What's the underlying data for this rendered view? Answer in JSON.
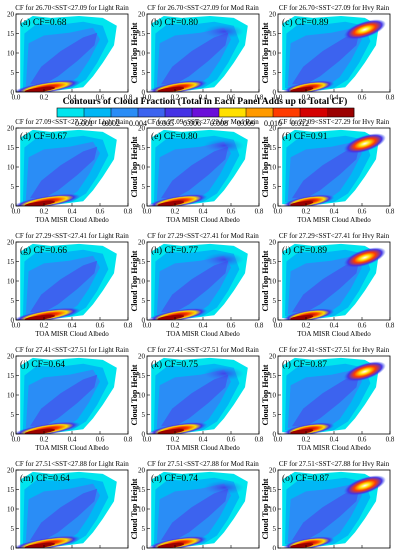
{
  "figure": {
    "colorbar_title": "Contours of Cloud Fraction (Total in Each Panel Adds up to Total CF)",
    "colorbar_ticks": [
      "0.001",
      "0.002",
      "0.004",
      "0.005",
      "0.006",
      "0.008",
      "0.009",
      "0.010",
      "0.012"
    ],
    "colorbar_colors": [
      "#00e5ee",
      "#00b7f5",
      "#2a8df6",
      "#3c63ef",
      "#4532e5",
      "#6a0fd9",
      "#ffe000",
      "#ff9a00",
      "#ff3c00",
      "#d40000",
      "#9b0000"
    ],
    "ylabel": "Cloud Top Height",
    "xlabel": "TOA MISR Cloud Albedo"
  },
  "chart_data": {
    "type": "heatmap",
    "x_ticks": [
      "0.0",
      "0.2",
      "0.4",
      "0.6",
      "0.8"
    ],
    "y_ticks": [
      "0",
      "5",
      "10",
      "15",
      "20"
    ],
    "xlim": [
      0,
      0.8
    ],
    "ylim": [
      0,
      20
    ],
    "rows": [
      {
        "sst": "26.70<SST<27.09",
        "panels": [
          {
            "title": "CF for 26.70<SST<27.09 for Light Rain",
            "label": "(a) CF=0.68",
            "cf": 0.68,
            "rain": "Light"
          },
          {
            "title": "CF for 26.70<SST<27.09 for Mod Rain",
            "label": "(b) CF=0.80",
            "cf": 0.8,
            "rain": "Mod"
          },
          {
            "title": "CF for 26.70<SST<27.09 for Hvy Rain",
            "label": "(c) CF=0.89",
            "cf": 0.89,
            "rain": "Hvy"
          }
        ]
      },
      {
        "sst": "27.09<SST<27.29",
        "panels": [
          {
            "title": "CF for 27.09<SST<27.29 for Light Rain",
            "label": "(d) CF=0.67",
            "cf": 0.67,
            "rain": "Light"
          },
          {
            "title": "CF for 27.09<SST<27.29 for Mod Rain",
            "label": "(e) CF=0.80",
            "cf": 0.8,
            "rain": "Mod"
          },
          {
            "title": "CF for 27.09<SST<27.29 for Hvy Rain",
            "label": "(f) CF=0.91",
            "cf": 0.91,
            "rain": "Hvy"
          }
        ]
      },
      {
        "sst": "27.29<SST<27.41",
        "panels": [
          {
            "title": "CF for 27.29<SST<27.41 for Light Rain",
            "label": "(g) CF=0.66",
            "cf": 0.66,
            "rain": "Light"
          },
          {
            "title": "CF for 27.29<SST<27.41 for Mod Rain",
            "label": "(h) CF=0.77",
            "cf": 0.77,
            "rain": "Mod"
          },
          {
            "title": "CF for 27.29<SST<27.41 for Hvy Rain",
            "label": "(i) CF=0.89",
            "cf": 0.89,
            "rain": "Hvy"
          }
        ]
      },
      {
        "sst": "27.41<SST<27.51",
        "panels": [
          {
            "title": "CF for 27.41<SST<27.51 for Light Rain",
            "label": "(j) CF=0.64",
            "cf": 0.64,
            "rain": "Light"
          },
          {
            "title": "CF for 27.41<SST<27.51 for Mod Rain",
            "label": "(k) CF=0.75",
            "cf": 0.75,
            "rain": "Mod"
          },
          {
            "title": "CF for 27.41<SST<27.51 for Hvy Rain",
            "label": "(l) CF=0.87",
            "cf": 0.87,
            "rain": "Hvy"
          }
        ]
      },
      {
        "sst": "27.51<SST<27.88",
        "panels": [
          {
            "title": "CF for 27.51<SST<27.88 for Light Rain",
            "label": "(m) CF=0.64",
            "cf": 0.64,
            "rain": "Light"
          },
          {
            "title": "CF for 27.51<SST<27.88 for Mod Rain",
            "label": "(n) CF=0.74",
            "cf": 0.74,
            "rain": "Mod"
          },
          {
            "title": "CF for 27.51<SST<27.88 for Hvy Rain",
            "label": "(o) CF=0.87",
            "cf": 0.87,
            "rain": "Hvy"
          }
        ]
      }
    ]
  }
}
